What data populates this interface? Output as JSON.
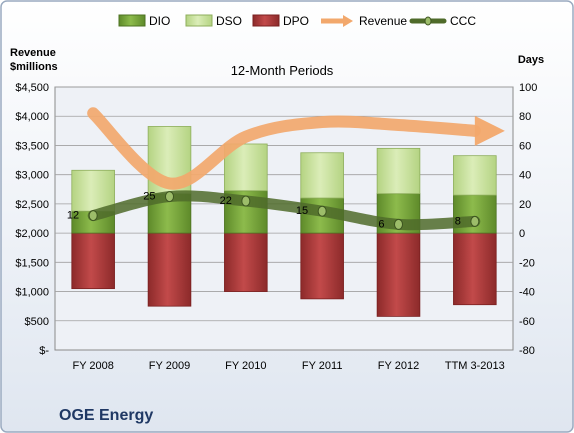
{
  "company": "OGE Energy",
  "subtitle": "12-Month Periods",
  "left_axis_title": [
    "Revenue",
    "$millions"
  ],
  "right_axis_title": "Days",
  "legend": [
    {
      "key": "dio",
      "label": "DIO"
    },
    {
      "key": "dso",
      "label": "DSO"
    },
    {
      "key": "dpo",
      "label": "DPO"
    },
    {
      "key": "revenue",
      "label": "Revenue"
    },
    {
      "key": "ccc",
      "label": "CCC"
    }
  ],
  "colors": {
    "dio": "#76a33a",
    "dso": "#c9e19a",
    "dpo": "#a53636",
    "revenue": "#f2a86c",
    "ccc": "#4f6b2a",
    "plot_bg": "#eef1f6",
    "grid": "#a0a0a0",
    "border": "#9aaac0"
  },
  "chart_data": {
    "type": "bar",
    "title": "12-Month Periods",
    "categories": [
      "FY 2008",
      "FY 2009",
      "FY 2010",
      "FY 2011",
      "FY 2012",
      "TTM 3-2013"
    ],
    "left_axis": {
      "label": "Revenue $millions",
      "ylim": [
        0,
        4500
      ],
      "ticks": [
        0,
        500,
        1000,
        1500,
        2000,
        2500,
        3000,
        3500,
        4000,
        4500
      ],
      "tick_labels": [
        "$-",
        "$500",
        "$1,000",
        "$1,500",
        "$2,000",
        "$2,500",
        "$3,000",
        "$3,500",
        "$4,000",
        "$4,500"
      ]
    },
    "right_axis": {
      "label": "Days",
      "ylim": [
        -80,
        100
      ],
      "ticks": [
        -80,
        -60,
        -40,
        -20,
        0,
        20,
        40,
        60,
        80,
        100
      ],
      "tick_labels": [
        "-80",
        "-60",
        "-40",
        "-20",
        "0",
        "20",
        "40",
        "60",
        "80",
        "100"
      ]
    },
    "series": [
      {
        "name": "DIO",
        "type": "stacked_bar",
        "axis": "right",
        "values": [
          15,
          27,
          29,
          24,
          27,
          26
        ]
      },
      {
        "name": "DSO",
        "type": "stacked_bar",
        "axis": "right",
        "values": [
          28,
          46,
          32,
          31,
          31,
          27
        ]
      },
      {
        "name": "DPO",
        "type": "stacked_bar",
        "axis": "right",
        "values": [
          -38,
          -50,
          -40,
          -45,
          -57,
          -49
        ]
      },
      {
        "name": "Revenue",
        "type": "line",
        "axis": "left",
        "values": [
          4050,
          2850,
          3650,
          3900,
          3850,
          3750
        ]
      },
      {
        "name": "CCC",
        "type": "line",
        "axis": "right",
        "values": [
          12,
          25,
          22,
          15,
          6,
          8
        ],
        "data_labels": [
          "12",
          "25",
          "22",
          "15",
          "6",
          "8"
        ]
      }
    ],
    "grid": true,
    "legend_position": "top"
  }
}
